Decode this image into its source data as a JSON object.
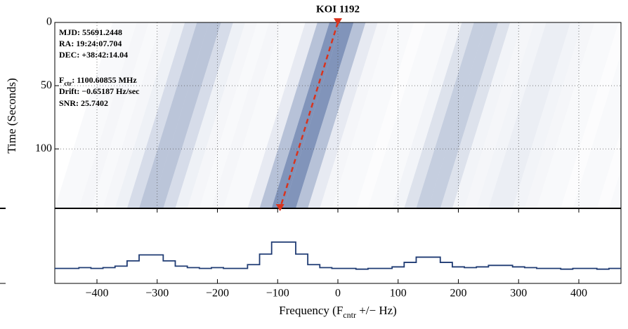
{
  "chart_data": {
    "type": "waterfall",
    "title": "KOI 1192",
    "xlabel": {
      "main": "Frequency (F",
      "sub": "cntr",
      "tail": " +/− Hz)"
    },
    "ylabel": "Time (Seconds)",
    "xlim": [
      -470,
      470
    ],
    "xticks": [
      {
        "value": -400,
        "label": "−400"
      },
      {
        "value": -300,
        "label": "−300"
      },
      {
        "value": -200,
        "label": "−200"
      },
      {
        "value": -100,
        "label": "−100"
      },
      0,
      100,
      200,
      300,
      400
    ],
    "ylim": [
      0,
      147
    ],
    "yticks": [
      0,
      50,
      100
    ],
    "grid": true,
    "annotations": [
      {
        "text": "MJD: 55691.2448"
      },
      {
        "text": "RA: 19:24:07.704"
      },
      {
        "text": "DEC: +38:42:14.04"
      },
      {
        "text": "F",
        "sub": "ctr",
        "tail": ": 1100.60855 MHz"
      },
      {
        "text": "Drift: −0.65187 Hz/sec"
      },
      {
        "text": "SNR: 25.7402"
      }
    ],
    "drift_line": {
      "x": [
        0,
        -96
      ],
      "y": [
        0,
        147
      ],
      "color": "#d9341e"
    },
    "spectrum": {
      "type": "step",
      "color": "#1f3b73",
      "ylim": [
        0,
        1
      ],
      "x": [
        -460,
        -440,
        -420,
        -400,
        -380,
        -360,
        -340,
        -320,
        -300,
        -280,
        -260,
        -240,
        -220,
        -200,
        -180,
        -160,
        -140,
        -120,
        -100,
        -80,
        -60,
        -40,
        -20,
        0,
        20,
        40,
        60,
        80,
        100,
        120,
        140,
        160,
        180,
        200,
        220,
        240,
        260,
        280,
        300,
        320,
        340,
        360,
        380,
        400,
        420,
        440,
        460
      ],
      "values": [
        0.2,
        0.2,
        0.21,
        0.2,
        0.21,
        0.23,
        0.3,
        0.38,
        0.38,
        0.3,
        0.23,
        0.21,
        0.2,
        0.21,
        0.2,
        0.2,
        0.25,
        0.39,
        0.55,
        0.55,
        0.39,
        0.25,
        0.21,
        0.2,
        0.2,
        0.19,
        0.2,
        0.2,
        0.22,
        0.28,
        0.35,
        0.35,
        0.28,
        0.22,
        0.21,
        0.22,
        0.24,
        0.24,
        0.22,
        0.21,
        0.2,
        0.2,
        0.19,
        0.2,
        0.2,
        0.19,
        0.2
      ]
    }
  }
}
